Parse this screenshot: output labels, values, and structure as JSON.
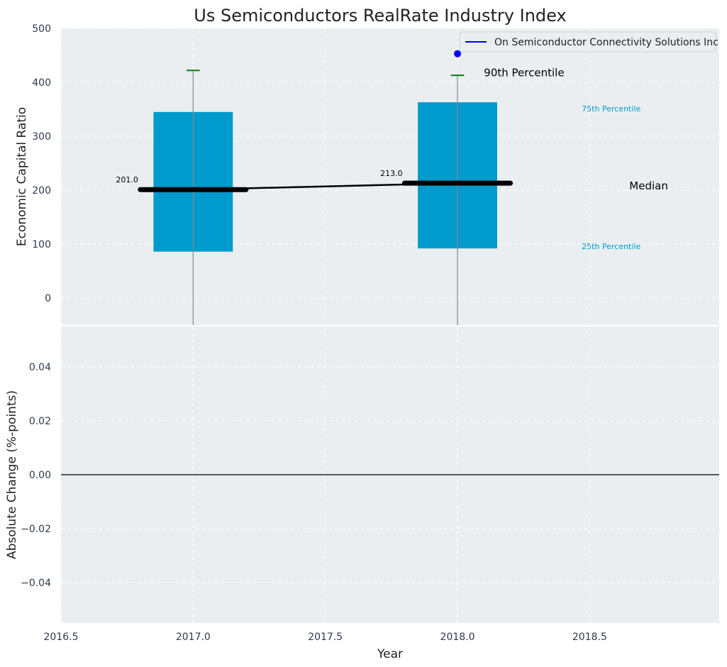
{
  "chart_data": [
    {
      "type": "box",
      "title": "Us Semiconductors RealRate Industry Index",
      "ylabel": "Economic Capital Ratio",
      "xlim": [
        2016.5,
        2018.99
      ],
      "ylim": [
        -50,
        500
      ],
      "grid": true,
      "legend_position": "top-right",
      "yticks": [
        "0",
        "100",
        "200",
        "300",
        "400",
        "500"
      ],
      "boxes": [
        {
          "x": 2017.0,
          "p25": 86,
          "p75": 345,
          "p90": 422,
          "median": 201.0,
          "median_label": "201.0"
        },
        {
          "x": 2018.0,
          "p25": 92,
          "p75": 363,
          "p90": 413,
          "median": 213.0,
          "median_label": "213.0"
        }
      ],
      "series": [
        {
          "name": "On Semiconductor Connectivity Solutions Inc",
          "x": [
            2018.0
          ],
          "y": [
            453
          ],
          "color": "#0000ff"
        }
      ],
      "median_line": {
        "x": [
          2017.0,
          2018.0
        ],
        "y": [
          201.0,
          213.0
        ]
      },
      "annotations": {
        "p90": "90th Percentile",
        "p75": "75th Percentile",
        "median": "Median",
        "p25": "25th Percentile"
      },
      "colors": {
        "box": "#009acd",
        "whisker_cap": "#008000",
        "median": "#000000",
        "background": "#eaeef0"
      }
    },
    {
      "type": "line",
      "xlabel": "Year",
      "ylabel": "Absolute Change (%-points)",
      "xlim": [
        2016.5,
        2018.99
      ],
      "ylim": [
        -0.055,
        0.055
      ],
      "grid": true,
      "xticks": [
        "2016.5",
        "2017.0",
        "2017.5",
        "2018.0",
        "2018.5"
      ],
      "yticks": [
        "−0.04",
        "−0.02",
        "0.00",
        "0.02",
        "0.04"
      ],
      "zero_line": 0.0
    }
  ]
}
